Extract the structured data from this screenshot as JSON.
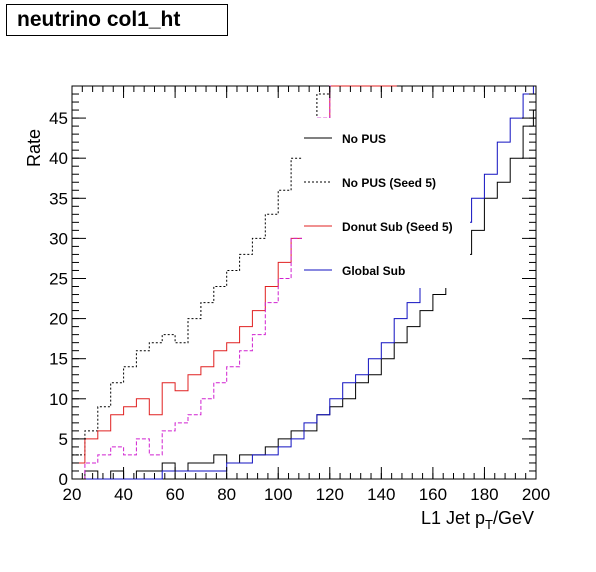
{
  "chart_data": {
    "type": "line",
    "title": "neutrino col1_ht",
    "xlabel": "L1 Jet p_T/GeV",
    "ylabel": "Rate",
    "xlim": [
      20,
      200
    ],
    "ylim": [
      0,
      49
    ],
    "x_ticks": [
      20,
      40,
      60,
      80,
      100,
      120,
      140,
      160,
      180,
      200
    ],
    "y_ticks": [
      0,
      5,
      10,
      15,
      20,
      25,
      30,
      35,
      40,
      45
    ],
    "legend_position": "top-right",
    "grid": false,
    "series": [
      {
        "name": "No PUS",
        "color": "#000000",
        "dash": "solid",
        "x": [
          20,
          25,
          30,
          35,
          40,
          45,
          50,
          55,
          60,
          65,
          70,
          75,
          80,
          85,
          90,
          95,
          100,
          105,
          110,
          115,
          120,
          125,
          130,
          135,
          140,
          145,
          150,
          155,
          160,
          165,
          170,
          175,
          180,
          185,
          190,
          195,
          199
        ],
        "values": [
          0,
          1,
          0,
          1,
          0,
          1,
          1,
          2,
          1,
          2,
          2,
          3,
          2,
          3,
          3,
          4,
          5,
          6,
          6,
          8,
          9,
          10,
          12,
          13,
          15,
          17,
          19,
          21,
          23,
          25,
          28,
          31,
          35,
          37,
          40,
          44,
          46
        ]
      },
      {
        "name": "No PUS (Seed 5)",
        "color": "#000000",
        "dash": "dotted",
        "x": [
          20,
          25,
          30,
          35,
          40,
          45,
          50,
          55,
          60,
          65,
          70,
          75,
          80,
          85,
          90,
          95,
          100,
          105,
          110,
          115,
          120,
          125,
          130,
          135,
          140,
          145
        ],
        "values": [
          3,
          6,
          9,
          12,
          14,
          16,
          17,
          18,
          17,
          20,
          22,
          24,
          26,
          28,
          30,
          33,
          36,
          40,
          44,
          48,
          49,
          49,
          49,
          49,
          49,
          49
        ]
      },
      {
        "name": "Donut Sub (Seed 5)",
        "color": "#e02020",
        "dash": "solid",
        "x": [
          20,
          25,
          30,
          35,
          40,
          45,
          50,
          55,
          60,
          65,
          70,
          75,
          80,
          85,
          90,
          95,
          100,
          105,
          110,
          115,
          120,
          125,
          130,
          135,
          140,
          145
        ],
        "values": [
          2,
          5,
          6,
          8,
          9,
          10,
          8,
          12,
          11,
          13,
          14,
          16,
          17,
          19,
          21,
          24,
          27,
          30,
          36,
          44,
          49,
          49,
          49,
          49,
          49,
          49
        ]
      },
      {
        "name": "Global Sub",
        "color": "#1010c0",
        "dash": "solid",
        "x": [
          20,
          25,
          30,
          35,
          40,
          45,
          50,
          55,
          60,
          65,
          70,
          75,
          80,
          85,
          90,
          95,
          100,
          105,
          110,
          115,
          120,
          125,
          130,
          135,
          140,
          145,
          150,
          155,
          160,
          165,
          170,
          175,
          180,
          185,
          190,
          195,
          199
        ],
        "values": [
          0,
          0,
          0,
          0,
          0,
          0,
          0,
          1,
          1,
          1,
          1,
          1,
          2,
          2,
          3,
          3,
          4,
          5,
          7,
          8,
          10,
          12,
          13,
          15,
          17,
          20,
          22,
          24,
          26,
          28,
          32,
          35,
          38,
          42,
          45,
          48,
          49
        ]
      },
      {
        "name": "",
        "color": "#d020d0",
        "dash": "dashed",
        "x": [
          20,
          25,
          30,
          35,
          40,
          45,
          50,
          55,
          60,
          65,
          70,
          75,
          80,
          85,
          90,
          95,
          100,
          105,
          110,
          115,
          120
        ],
        "values": [
          0,
          2,
          3,
          4,
          3,
          5,
          3,
          6,
          7,
          8,
          10,
          12,
          14,
          16,
          18,
          22,
          25,
          30,
          36,
          45,
          49
        ]
      }
    ]
  }
}
